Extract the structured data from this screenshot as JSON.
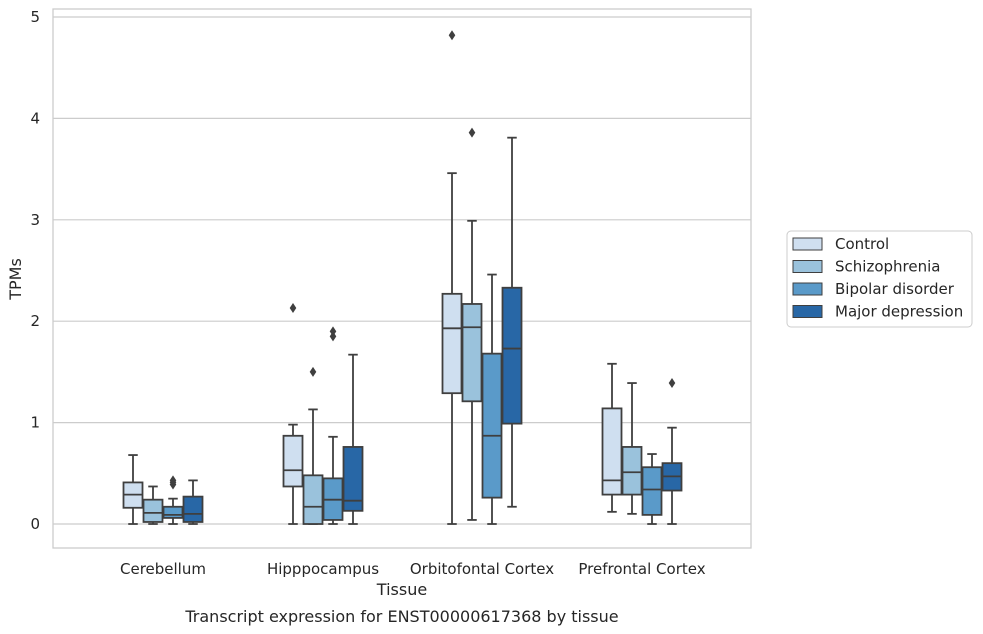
{
  "chart_data": {
    "type": "box",
    "caption": "Transcript expression for ENST00000617368 by tissue",
    "xlabel": "Tissue",
    "ylabel": "TPMs",
    "ylim": [
      -0.23,
      5.08
    ],
    "yticks": [
      0,
      1,
      2,
      3,
      4,
      5
    ],
    "grid": true,
    "legend_position": "right",
    "categories": [
      "Cerebellum",
      "Hipppocampus",
      "Orbitofontal Cortex",
      "Prefrontal Cortex"
    ],
    "series": [
      {
        "name": "Control",
        "color": "#cfdff0",
        "boxes": [
          {
            "whislo": 0.0,
            "q1": 0.16,
            "median": 0.29,
            "q3": 0.41,
            "whishi": 0.68,
            "fliers": []
          },
          {
            "whislo": 0.0,
            "q1": 0.37,
            "median": 0.53,
            "q3": 0.87,
            "whishi": 0.98,
            "fliers": [
              2.13
            ]
          },
          {
            "whislo": 0.0,
            "q1": 1.29,
            "median": 1.93,
            "q3": 2.27,
            "whishi": 3.46,
            "fliers": [
              4.82
            ]
          },
          {
            "whislo": 0.12,
            "q1": 0.29,
            "median": 0.43,
            "q3": 1.14,
            "whishi": 1.58,
            "fliers": []
          }
        ]
      },
      {
        "name": "Schizophrenia",
        "color": "#9ac2dc",
        "boxes": [
          {
            "whislo": 0.0,
            "q1": 0.02,
            "median": 0.11,
            "q3": 0.24,
            "whishi": 0.37,
            "fliers": []
          },
          {
            "whislo": 0.0,
            "q1": 0.0,
            "median": 0.17,
            "q3": 0.48,
            "whishi": 1.13,
            "fliers": [
              1.5
            ]
          },
          {
            "whislo": 0.04,
            "q1": 1.21,
            "median": 1.94,
            "q3": 2.17,
            "whishi": 2.99,
            "fliers": [
              3.86
            ]
          },
          {
            "whislo": 0.1,
            "q1": 0.29,
            "median": 0.51,
            "q3": 0.76,
            "whishi": 1.39,
            "fliers": []
          }
        ]
      },
      {
        "name": "Bipolar disorder",
        "color": "#5a9ac9",
        "boxes": [
          {
            "whislo": 0.0,
            "q1": 0.06,
            "median": 0.09,
            "q3": 0.17,
            "whishi": 0.25,
            "fliers": [
              0.39,
              0.41,
              0.43
            ]
          },
          {
            "whislo": 0.0,
            "q1": 0.04,
            "median": 0.24,
            "q3": 0.45,
            "whishi": 0.86,
            "fliers": [
              1.85,
              1.9
            ]
          },
          {
            "whislo": 0.0,
            "q1": 0.26,
            "median": 0.87,
            "q3": 1.68,
            "whishi": 2.46,
            "fliers": []
          },
          {
            "whislo": 0.0,
            "q1": 0.09,
            "median": 0.34,
            "q3": 0.56,
            "whishi": 0.69,
            "fliers": []
          }
        ]
      },
      {
        "name": "Major depression",
        "color": "#2867a6",
        "boxes": [
          {
            "whislo": 0.0,
            "q1": 0.02,
            "median": 0.1,
            "q3": 0.27,
            "whishi": 0.43,
            "fliers": []
          },
          {
            "whislo": 0.0,
            "q1": 0.13,
            "median": 0.23,
            "q3": 0.76,
            "whishi": 1.67,
            "fliers": []
          },
          {
            "whislo": 0.17,
            "q1": 0.99,
            "median": 1.73,
            "q3": 2.33,
            "whishi": 3.81,
            "fliers": []
          },
          {
            "whislo": 0.0,
            "q1": 0.33,
            "median": 0.47,
            "q3": 0.6,
            "whishi": 0.95,
            "fliers": [
              1.39
            ]
          }
        ]
      }
    ]
  },
  "colors": {
    "grid": "#cccccc",
    "box_edge": "#3f3f3f",
    "frame": "#cccccc"
  }
}
